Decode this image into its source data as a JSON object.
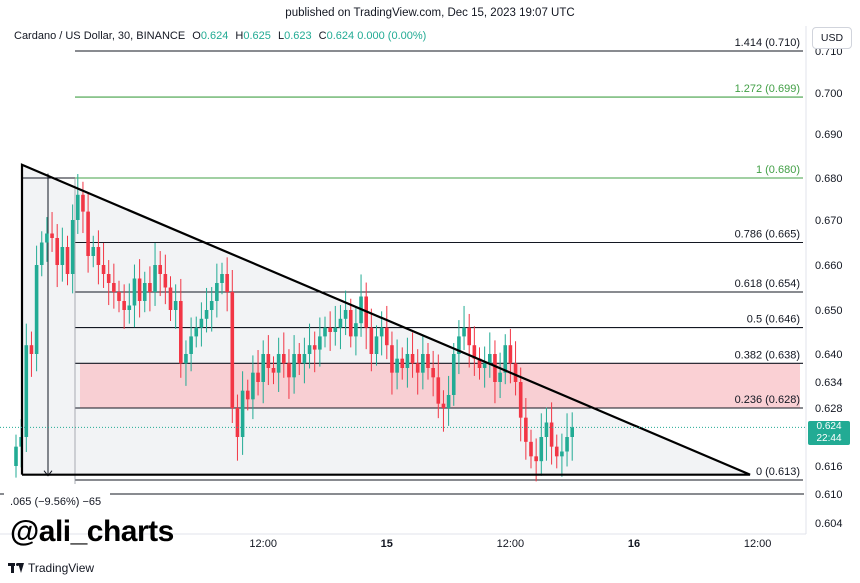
{
  "header": {
    "published": "published on TradingView.com, Dec 15, 2023 19:07 UTC"
  },
  "legend": {
    "symbol": "Cardano / US Dollar, 30, BINANCE",
    "o_label": "O",
    "o": "0.624",
    "h_label": "H",
    "h": "0.625",
    "l_label": "L",
    "l": "0.623",
    "c_label": "C",
    "c": "0.624 0.000 (0.00%)"
  },
  "currency": "USD",
  "price_tag": {
    "price": "0.624",
    "countdown": "22:44"
  },
  "measure_label": ".065 (−9.56%) −65",
  "watermark": "@ali_charts",
  "footer": {
    "brand": "TradingView"
  },
  "colors": {
    "up": "#22ab94",
    "down": "#f23645",
    "fib_green": "#43a047",
    "zone": "#f7b6bd"
  },
  "chart_data": {
    "type": "candlestick",
    "ylim": [
      0.6,
      0.713
    ],
    "y_ticks": [
      "0.604",
      "0.610",
      "0.616",
      "0.622",
      "0.628",
      "0.634",
      "0.640",
      "0.650",
      "0.660",
      "0.670",
      "0.680",
      "0.690",
      "0.700",
      "0.710"
    ],
    "x_ticks": [
      {
        "label": "12:00",
        "bar": 48
      },
      {
        "label": "15",
        "bar": 72
      },
      {
        "label": "12:00",
        "bar": 96
      },
      {
        "label": "16",
        "bar": 120
      },
      {
        "label": "12:00",
        "bar": 144
      }
    ],
    "fib_levels": [
      {
        "label": "1.414 (0.710)",
        "price": 0.71,
        "color": "#131722"
      },
      {
        "label": "1.272 (0.699)",
        "price": 0.699,
        "color": "#43a047"
      },
      {
        "label": "1 (0.680)",
        "price": 0.68,
        "color": "#43a047"
      },
      {
        "label": "0.786 (0.665)",
        "price": 0.665,
        "color": "#131722"
      },
      {
        "label": "0.618 (0.654)",
        "price": 0.654,
        "color": "#131722"
      },
      {
        "label": "0.5 (0.646)",
        "price": 0.646,
        "color": "#131722"
      },
      {
        "label": "0.382 (0.638)",
        "price": 0.638,
        "color": "#131722"
      },
      {
        "label": "0.236 (0.628)",
        "price": 0.628,
        "color": "#131722"
      },
      {
        "label": "0 (0.613)",
        "price": 0.613,
        "color": "#131722"
      }
    ],
    "zone": [
      0.628,
      0.638
    ],
    "triangle": [
      [
        0,
        0.683
      ],
      [
        0,
        0.615
      ],
      [
        143,
        0.615
      ]
    ],
    "closes": [
      0.62,
      0.622,
      0.642,
      0.64,
      0.66,
      0.665,
      0.667,
      0.666,
      0.66,
      0.664,
      0.658,
      0.67,
      0.676,
      0.672,
      0.662,
      0.664,
      0.66,
      0.658,
      0.656,
      0.654,
      0.652,
      0.65,
      0.651,
      0.657,
      0.652,
      0.656,
      0.654,
      0.66,
      0.658,
      0.655,
      0.65,
      0.652,
      0.638,
      0.64,
      0.644,
      0.646,
      0.648,
      0.65,
      0.652,
      0.656,
      0.658,
      0.654,
      0.628,
      0.622,
      0.632,
      0.63,
      0.636,
      0.634,
      0.64,
      0.637,
      0.636,
      0.64,
      0.638,
      0.635,
      0.64,
      0.638,
      0.64,
      0.642,
      0.641,
      0.644,
      0.646,
      0.645,
      0.646,
      0.648,
      0.65,
      0.644,
      0.647,
      0.653,
      0.646,
      0.64,
      0.644,
      0.646,
      0.642,
      0.636,
      0.639,
      0.637,
      0.64,
      0.638,
      0.636,
      0.64,
      0.637,
      0.635,
      0.629,
      0.628,
      0.631,
      0.64,
      0.644,
      0.646,
      0.642,
      0.639,
      0.637,
      0.638,
      0.64,
      0.634,
      0.636,
      0.642,
      0.638,
      0.634,
      0.626,
      0.621,
      0.618,
      0.617,
      0.622,
      0.625,
      0.62,
      0.618,
      0.619,
      0.622,
      0.624
    ],
    "x_axis_bars": 160
  }
}
